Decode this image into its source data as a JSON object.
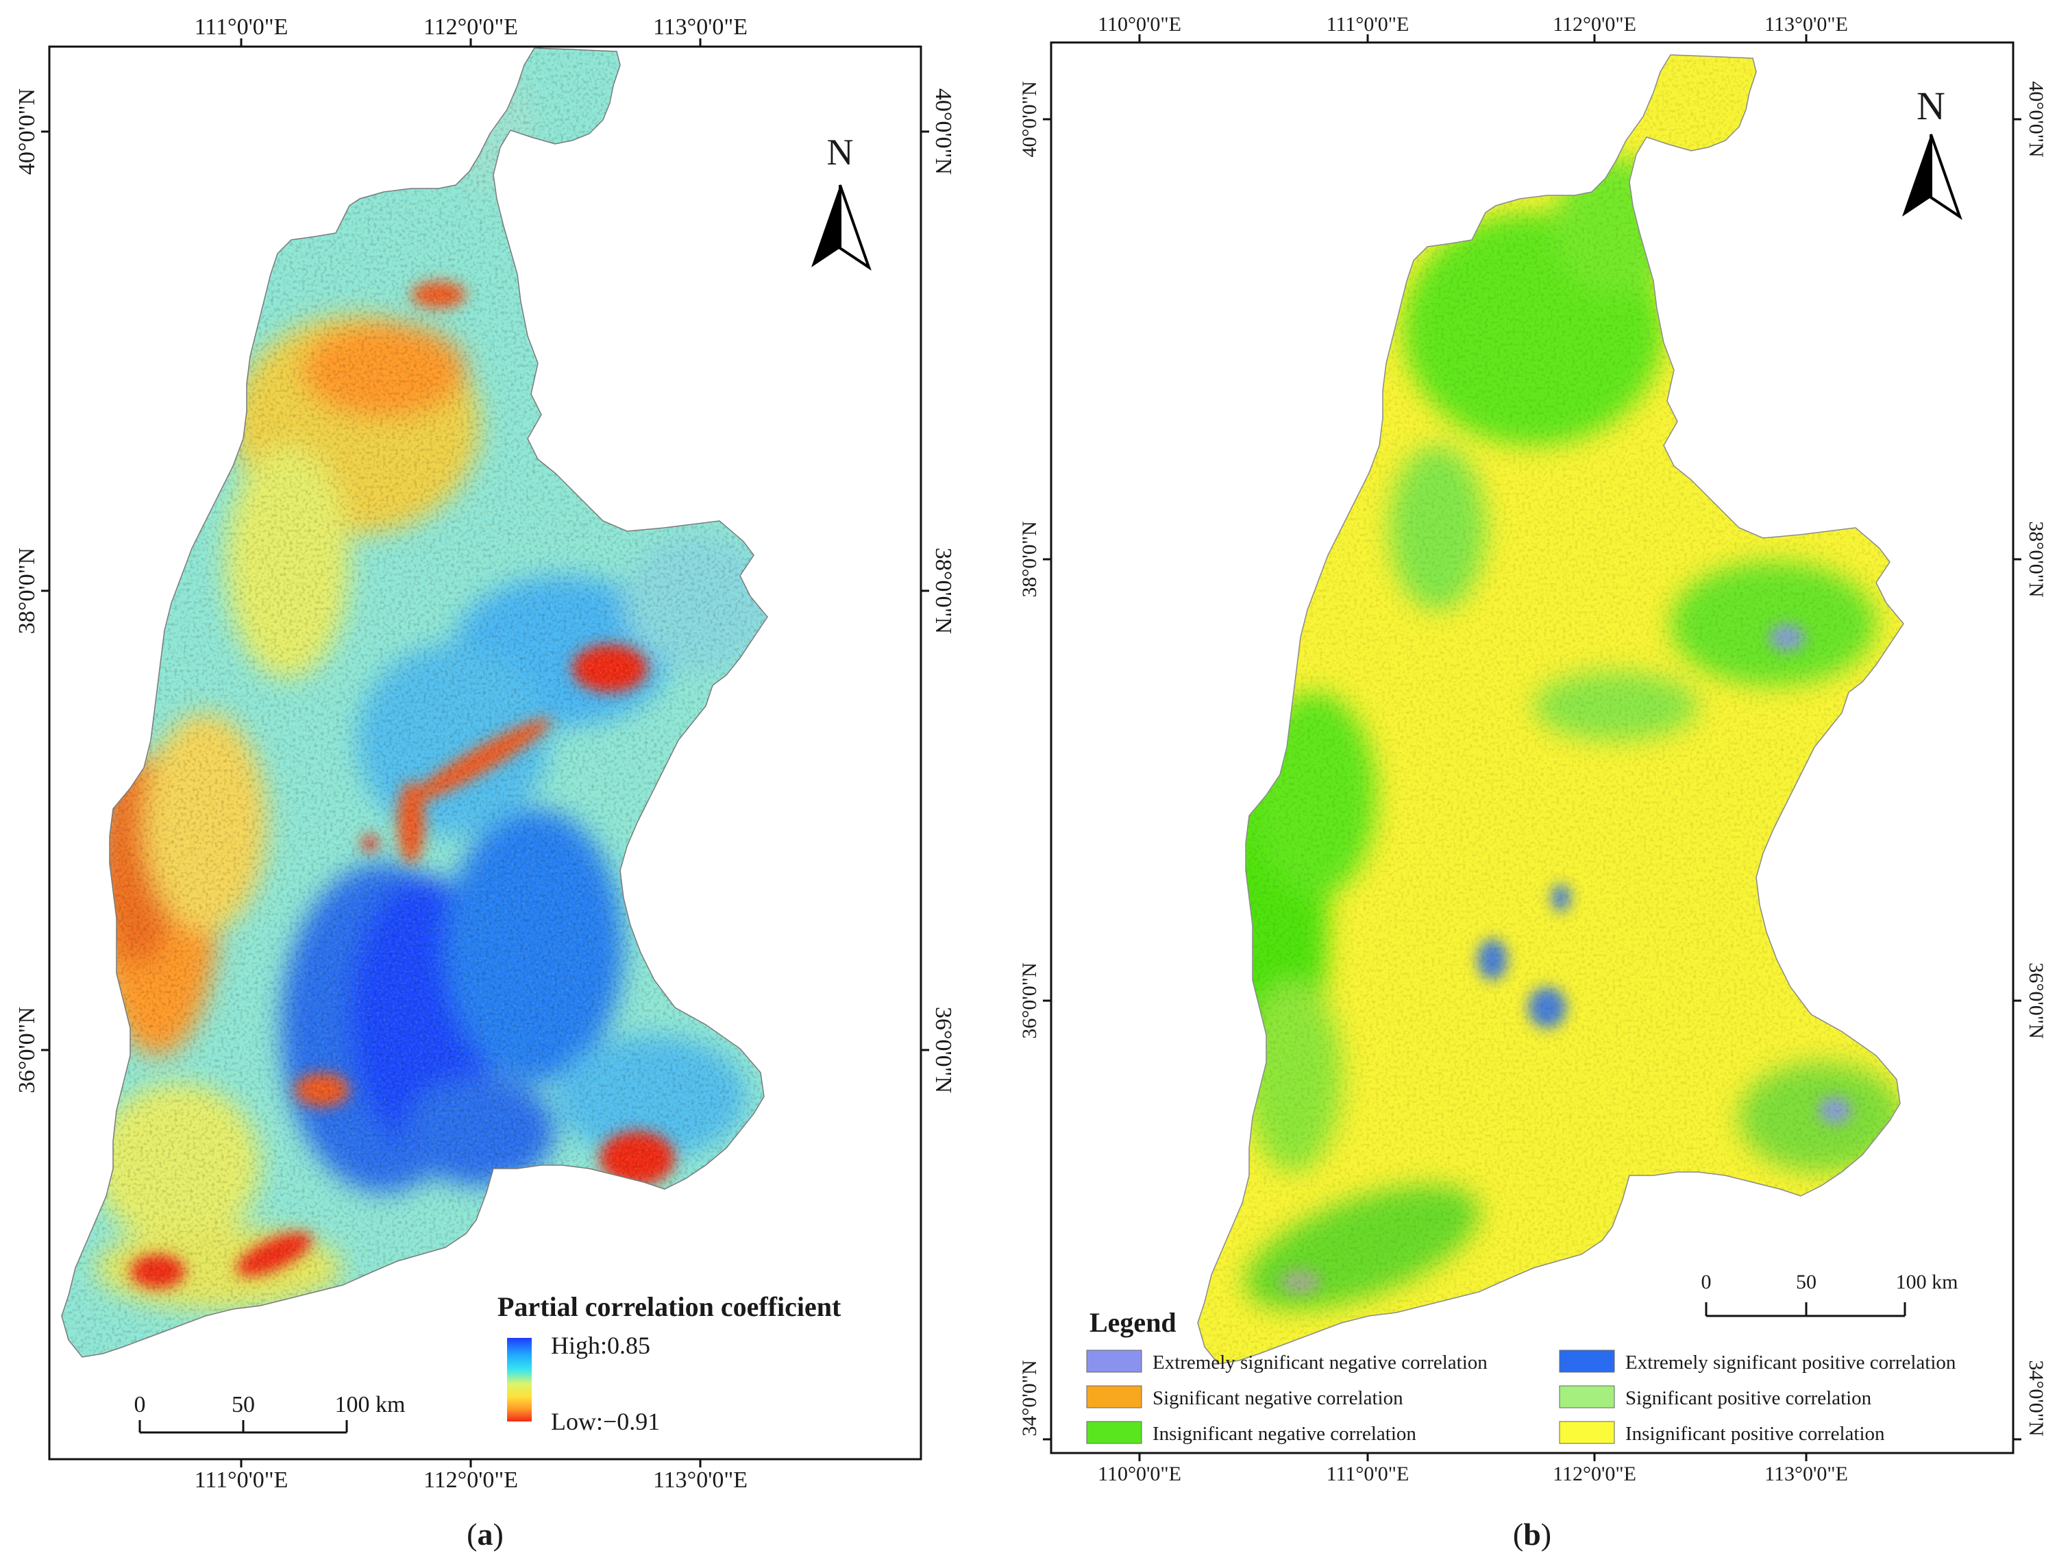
{
  "panel_a": {
    "label": "a",
    "top_ticks": [
      "111°0'0\"E",
      "112°0'0\"E",
      "113°0'0\"E"
    ],
    "bottom_ticks": [
      "111°0'0\"E",
      "112°0'0\"E",
      "113°0'0\"E"
    ],
    "left_ticks": [
      "40°0'0\"N",
      "38°0'0\"N",
      "36°0'0\"N"
    ],
    "right_ticks": [
      "40°0'0\"N",
      "38°0'0\"N",
      "36°0'0\"N"
    ],
    "north_label": "N",
    "legend_title": "Partial correlation coefficient",
    "legend_high": "High:0.85",
    "legend_low": "Low:−0.91",
    "colormap": [
      "#1f3cff",
      "#21a8ff",
      "#37e6f0",
      "#d9f56a",
      "#ffe13a",
      "#ff9a2a",
      "#f02a16"
    ],
    "scale": {
      "labels": [
        "0",
        "50",
        "100 km"
      ]
    }
  },
  "panel_b": {
    "label": "b",
    "top_ticks": [
      "110°0'0\"E",
      "111°0'0\"E",
      "112°0'0\"E",
      "113°0'0\"E"
    ],
    "bottom_ticks": [
      "110°0'0\"E",
      "111°0'0\"E",
      "112°0'0\"E",
      "113°0'0\"E"
    ],
    "left_ticks": [
      "40°0'0\"N",
      "38°0'0\"N",
      "36°0'0\"N",
      "34°0'0\"N"
    ],
    "right_ticks": [
      "40°0'0\"N",
      "38°0'0\"N",
      "36°0'0\"N",
      "34°0'0\"N"
    ],
    "north_label": "N",
    "scale": {
      "labels": [
        "0",
        "50",
        "100 km"
      ]
    },
    "legend": {
      "title": "Legend",
      "items": [
        {
          "label": "Extremely significant negative correlation",
          "color": "#8a92f0"
        },
        {
          "label": "Significant negative correlation",
          "color": "#f7a81e"
        },
        {
          "label": "Insignificant negative correlation",
          "color": "#5ae61e"
        },
        {
          "label": "Extremely significant positive correlation",
          "color": "#2a6cf0"
        },
        {
          "label": "Significant positive correlation",
          "color": "#a4ef7e"
        },
        {
          "label": "Insignificant positive correlation",
          "color": "#fbfb3a"
        }
      ]
    }
  }
}
